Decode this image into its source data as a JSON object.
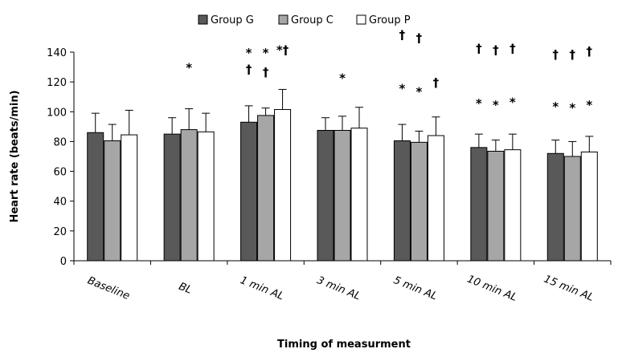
{
  "chart_data": {
    "type": "bar",
    "xlabel": "Timing of measurment",
    "ylabel": "Heart rate (beats/min)",
    "ylim": [
      0,
      140
    ],
    "yticks": [
      0,
      20,
      40,
      60,
      80,
      100,
      120,
      140
    ],
    "grid": false,
    "legend_position": "top",
    "categories": [
      "Baseline",
      "BL",
      "1 min AL",
      "3 min AL",
      "5 min AL",
      "10 min AL",
      "15 min AL"
    ],
    "series": [
      {
        "name": "Group G",
        "color": "#595959",
        "values": [
          86,
          85,
          93,
          87.5,
          80.5,
          76,
          72
        ],
        "errors": [
          13,
          11,
          11,
          8.5,
          11,
          9,
          9
        ]
      },
      {
        "name": "Group C",
        "color": "#a6a6a6",
        "values": [
          80.5,
          88,
          97.5,
          87.5,
          79.5,
          73.5,
          70
        ],
        "errors": [
          11,
          14,
          5,
          9.5,
          7.5,
          7.5,
          10
        ]
      },
      {
        "name": "Group P",
        "color": "#ffffff",
        "values": [
          84.5,
          86.5,
          101.5,
          89,
          84,
          74.5,
          73
        ],
        "errors": [
          16.5,
          12.5,
          13.5,
          14,
          12.5,
          10.5,
          10.5
        ]
      }
    ],
    "annotations": [
      {
        "category": 1,
        "series": 1,
        "text": "*",
        "y": 130
      },
      {
        "category": 2,
        "series": 0,
        "text": "*",
        "y": 140
      },
      {
        "category": 2,
        "series": 1,
        "text": "*",
        "y": 140
      },
      {
        "category": 2,
        "series": 2,
        "text": "*†",
        "y": 142
      },
      {
        "category": 2,
        "series": 0,
        "text": "†",
        "y": 129
      },
      {
        "category": 2,
        "series": 1,
        "text": "†",
        "y": 127
      },
      {
        "category": 3,
        "series": 1,
        "text": "*",
        "y": 123
      },
      {
        "category": 4,
        "series": 0,
        "text": "†",
        "y": 152
      },
      {
        "category": 4,
        "series": 1,
        "text": "†",
        "y": 150
      },
      {
        "category": 4,
        "series": 0,
        "text": "*",
        "y": 116
      },
      {
        "category": 4,
        "series": 1,
        "text": "*",
        "y": 114
      },
      {
        "category": 4,
        "series": 2,
        "text": "†",
        "y": 120
      },
      {
        "category": 5,
        "series": 0,
        "text": "†",
        "y": 143
      },
      {
        "category": 5,
        "series": 1,
        "text": "†",
        "y": 142
      },
      {
        "category": 5,
        "series": 2,
        "text": "†",
        "y": 143
      },
      {
        "category": 5,
        "series": 0,
        "text": "*",
        "y": 106
      },
      {
        "category": 5,
        "series": 1,
        "text": "*",
        "y": 105
      },
      {
        "category": 5,
        "series": 2,
        "text": "*",
        "y": 107
      },
      {
        "category": 6,
        "series": 0,
        "text": "†",
        "y": 139
      },
      {
        "category": 6,
        "series": 1,
        "text": "†",
        "y": 139
      },
      {
        "category": 6,
        "series": 2,
        "text": "†",
        "y": 141
      },
      {
        "category": 6,
        "series": 0,
        "text": "*",
        "y": 104
      },
      {
        "category": 6,
        "series": 1,
        "text": "*",
        "y": 103
      },
      {
        "category": 6,
        "series": 2,
        "text": "*",
        "y": 105
      }
    ]
  }
}
